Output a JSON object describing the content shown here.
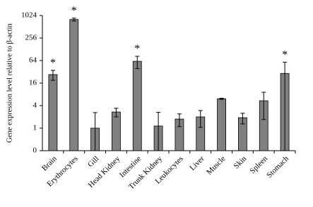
{
  "chart_data": {
    "type": "bar",
    "y_label": "Gene expression level relative to β-actin",
    "categories": [
      "Brain",
      "Erythrocytes",
      "Gill",
      "Head Kidney",
      "Intestine",
      "Trunk Kidney",
      "Leukocytes",
      "Liver",
      "Muscle",
      "Skin",
      "Spleen",
      "Stomach"
    ],
    "values": [
      27,
      800,
      1.0,
      2.7,
      61,
      1.14,
      1.75,
      2.0,
      6.1,
      1.9,
      5.4,
      29
    ],
    "errors": [
      8,
      70,
      1.6,
      0.7,
      22,
      1.5,
      0.65,
      0.95,
      0.2,
      0.6,
      3.7,
      29
    ],
    "significance": [
      "*",
      "*",
      null,
      null,
      "*",
      null,
      null,
      null,
      null,
      null,
      null,
      "*"
    ],
    "color": "#808080",
    "log_scale": true,
    "ylim": [
      0.25,
      1024
    ],
    "yticks": [
      {
        "value": 0.25,
        "label": "0"
      },
      1,
      4,
      16,
      64,
      256,
      1024
    ]
  }
}
